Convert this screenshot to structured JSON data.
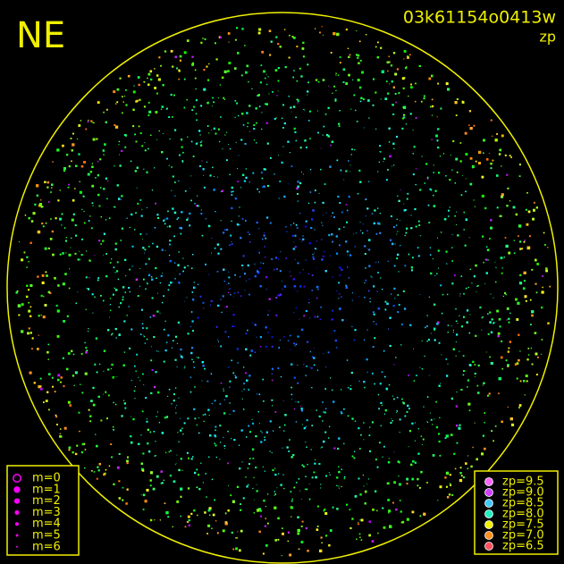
{
  "header": {
    "label": "NE",
    "image_id": "03k61154o0413w",
    "subtitle": "zp"
  },
  "legend_m": {
    "items": [
      "m=0",
      "m=1",
      "m=2",
      "m=3",
      "m=4",
      "m=5",
      "m=6"
    ],
    "color": "#ff00ff"
  },
  "legend_zp": {
    "items": [
      "zp=9.5",
      "zp=9.0",
      "zp=8.5",
      "zp=8.0",
      "zp=7.5",
      "zp=7.0",
      "zp=6.5"
    ],
    "colors": [
      "#ff66ff",
      "#d040ff",
      "#40c8ff",
      "#20f0c0",
      "#f0f000",
      "#ff9020",
      "#ff5060"
    ]
  }
}
